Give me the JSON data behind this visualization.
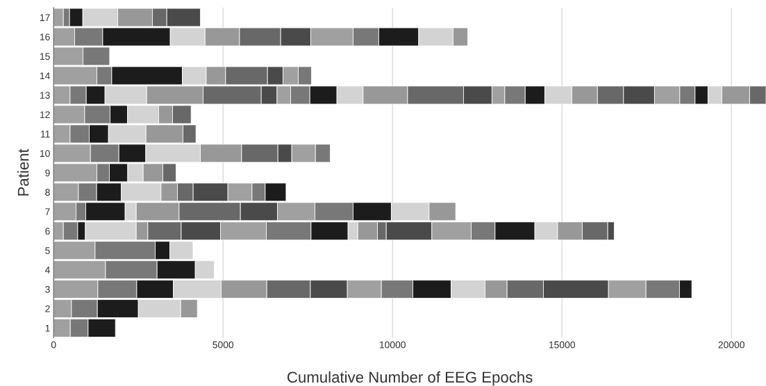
{
  "chart_data": {
    "type": "bar",
    "orientation": "horizontal",
    "stacked": true,
    "xlabel": "Cumulative Number of EEG Epochs",
    "ylabel": "Patient",
    "categories": [
      "17",
      "16",
      "15",
      "14",
      "13",
      "12",
      "11",
      "10",
      "9",
      "8",
      "7",
      "6",
      "5",
      "4",
      "3",
      "2",
      "1"
    ],
    "xlim": [
      0,
      21020
    ],
    "xticks": [
      0,
      5000,
      10000,
      15000,
      20000
    ],
    "grid": "x",
    "series": [
      {
        "color": "#a0a0a0",
        "values": [
          287,
          621,
          867,
          1277,
          486,
          916,
          486,
          1086,
          1277,
          731,
          662,
          287,
          1223,
          1531,
          1305,
          527,
          492
        ]
      },
      {
        "color": "#787878",
        "values": [
          184,
          828,
          786,
          438,
          477,
          750,
          565,
          840,
          368,
          539,
          287,
          424,
          1775,
          1522,
          1148,
          764,
          526
        ]
      },
      {
        "color": "#1c1c1c",
        "values": [
          390,
          1993,
          null,
          2082,
          553,
          512,
          568,
          793,
          541,
          724,
          1161,
          225,
          430,
          1127,
          1078,
          1209,
          806
        ]
      },
      {
        "color": "#d3d3d3",
        "values": [
          1030,
          1025,
          null,
          705,
          1230,
          922,
          1106,
          1611,
          457,
          1176,
          328,
          1502,
          684,
          559,
          1413,
          1250,
          null
        ]
      },
      {
        "color": "#989898",
        "values": [
          1025,
          1018,
          null,
          573,
          1665,
          410,
          1092,
          1217,
          580,
          483,
          1265,
          342,
          null,
          null,
          1346,
          491,
          null
        ]
      },
      {
        "color": "#686868",
        "values": [
          424,
          1215,
          null,
          1236,
          1716,
          547,
          383,
          1071,
          389,
          465,
          1809,
          984,
          null,
          null,
          1285,
          null,
          null
        ]
      },
      {
        "color": "#4a4a4a",
        "values": [
          990,
          887,
          null,
          457,
          465,
          null,
          null,
          410,
          null,
          1025,
          1092,
          1160,
          null,
          null,
          1092,
          null,
          null
        ]
      },
      {
        "color": "#a0a0a0",
        "values": [
          null,
          1250,
          null,
          451,
          401,
          null,
          null,
          697,
          null,
          711,
          1106,
          1352,
          null,
          null,
          1004,
          null,
          null
        ]
      },
      {
        "color": "#787878",
        "values": [
          null,
          758,
          null,
          389,
          568,
          null,
          null,
          436,
          null,
          389,
          1127,
          1320,
          null,
          null,
          929,
          null,
          null
        ]
      },
      {
        "color": "#1c1c1c",
        "values": [
          null,
          1177,
          null,
          null,
          799,
          null,
          null,
          null,
          null,
          615,
          1127,
          1092,
          null,
          null,
          1127,
          null,
          null
        ]
      },
      {
        "color": "#d3d3d3",
        "values": [
          null,
          1016,
          null,
          null,
          772,
          null,
          null,
          null,
          null,
          null,
          1115,
          287,
          null,
          null,
          1004,
          null,
          null
        ]
      },
      {
        "color": "#989898",
        "values": [
          null,
          430,
          null,
          null,
          1312,
          null,
          null,
          null,
          null,
          null,
          785,
          580,
          null,
          null,
          649,
          null,
          null
        ]
      },
      {
        "color": "#686868",
        "values": [
          null,
          null,
          null,
          null,
          1651,
          null,
          null,
          null,
          null,
          null,
          null,
          260,
          null,
          null,
          1072,
          null,
          null
        ]
      },
      {
        "color": "#4a4a4a",
        "values": [
          null,
          null,
          null,
          null,
          840,
          null,
          null,
          null,
          null,
          null,
          null,
          1345,
          null,
          null,
          1920,
          null,
          null
        ]
      },
      {
        "color": "#a0a0a0",
        "values": [
          null,
          null,
          null,
          null,
          377,
          null,
          null,
          null,
          null,
          null,
          null,
          1161,
          null,
          null,
          1106,
          null,
          null
        ]
      },
      {
        "color": "#787878",
        "values": [
          null,
          null,
          null,
          null,
          603,
          null,
          null,
          null,
          null,
          null,
          null,
          705,
          null,
          null,
          990,
          null,
          null
        ]
      },
      {
        "color": "#1c1c1c",
        "values": [
          null,
          null,
          null,
          null,
          578,
          null,
          null,
          null,
          null,
          null,
          null,
          1174,
          null,
          null,
          363,
          null,
          null
        ]
      },
      {
        "color": "#d3d3d3",
        "values": [
          null,
          null,
          null,
          null,
          799,
          null,
          null,
          null,
          null,
          null,
          null,
          670,
          null,
          null,
          null,
          null,
          null
        ]
      },
      {
        "color": "#989898",
        "values": [
          null,
          null,
          null,
          null,
          755,
          null,
          null,
          null,
          null,
          null,
          null,
          729,
          null,
          null,
          null,
          null,
          null
        ]
      },
      {
        "color": "#686868",
        "values": [
          null,
          null,
          null,
          null,
          769,
          null,
          null,
          null,
          null,
          null,
          null,
          752,
          null,
          null,
          null,
          null,
          null
        ]
      },
      {
        "color": "#4a4a4a",
        "values": [
          null,
          null,
          null,
          null,
          914,
          null,
          null,
          null,
          null,
          null,
          null,
          190,
          null,
          null,
          null,
          null,
          null
        ]
      },
      {
        "color": "#a0a0a0",
        "values": [
          null,
          null,
          null,
          null,
          746,
          null,
          null,
          null,
          null,
          null,
          null,
          null,
          null,
          null,
          null,
          null,
          null
        ]
      },
      {
        "color": "#787878",
        "values": [
          null,
          null,
          null,
          null,
          451,
          null,
          null,
          null,
          null,
          null,
          null,
          null,
          null,
          null,
          null,
          null,
          null
        ]
      },
      {
        "color": "#1c1c1c",
        "values": [
          null,
          null,
          null,
          null,
          381,
          null,
          null,
          null,
          null,
          null,
          null,
          null,
          null,
          null,
          null,
          null,
          null
        ]
      },
      {
        "color": "#d3d3d3",
        "values": [
          null,
          null,
          null,
          null,
          410,
          null,
          null,
          null,
          null,
          null,
          null,
          null,
          null,
          null,
          null,
          null,
          null
        ]
      },
      {
        "color": "#989898",
        "values": [
          null,
          null,
          null,
          null,
          819,
          null,
          null,
          null,
          null,
          null,
          null,
          null,
          null,
          null,
          null,
          null,
          null
        ]
      },
      {
        "color": "#686868",
        "values": [
          null,
          null,
          null,
          null,
          483,
          null,
          null,
          null,
          null,
          null,
          null,
          null,
          null,
          null,
          null,
          null,
          null
        ]
      }
    ]
  }
}
